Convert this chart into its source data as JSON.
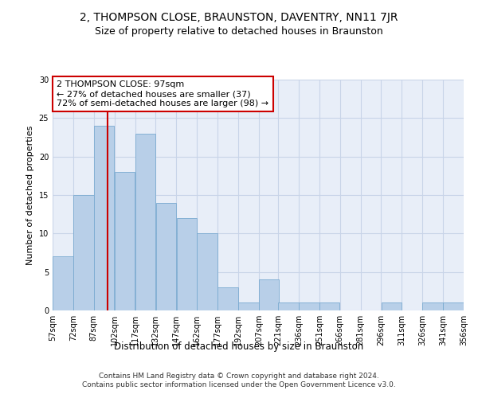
{
  "title": "2, THOMPSON CLOSE, BRAUNSTON, DAVENTRY, NN11 7JR",
  "subtitle": "Size of property relative to detached houses in Braunston",
  "xlabel": "Distribution of detached houses by size in Braunston",
  "ylabel": "Number of detached properties",
  "bar_color": "#b8cfe8",
  "bar_edge_color": "#7aaad0",
  "vline_x": 97,
  "vline_color": "#cc0000",
  "annotation_text": "2 THOMPSON CLOSE: 97sqm\n← 27% of detached houses are smaller (37)\n72% of semi-detached houses are larger (98) →",
  "annotation_box_color": "#ffffff",
  "annotation_border_color": "#cc0000",
  "bins_left_edges": [
    57,
    72,
    87,
    102,
    117,
    132,
    147,
    162,
    177,
    192,
    207,
    221,
    236,
    251,
    266,
    281,
    296,
    311,
    326,
    341
  ],
  "bin_width": 15,
  "bar_heights": [
    7,
    15,
    24,
    18,
    23,
    14,
    12,
    10,
    3,
    1,
    4,
    1,
    1,
    1,
    0,
    0,
    1,
    0,
    1,
    1
  ],
  "ylim": [
    0,
    30
  ],
  "xlim": [
    57,
    356
  ],
  "xtick_labels": [
    "57sqm",
    "72sqm",
    "87sqm",
    "102sqm",
    "117sqm",
    "132sqm",
    "147sqm",
    "162sqm",
    "177sqm",
    "192sqm",
    "207sqm",
    "221sqm",
    "236sqm",
    "251sqm",
    "266sqm",
    "281sqm",
    "296sqm",
    "311sqm",
    "326sqm",
    "341sqm",
    "356sqm"
  ],
  "grid_color": "#c8d4e8",
  "bg_color": "#e8eef8",
  "footnote": "Contains HM Land Registry data © Crown copyright and database right 2024.\nContains public sector information licensed under the Open Government Licence v3.0.",
  "title_fontsize": 10,
  "subtitle_fontsize": 9,
  "xlabel_fontsize": 8.5,
  "ylabel_fontsize": 8,
  "tick_fontsize": 7,
  "annotation_fontsize": 8,
  "footnote_fontsize": 6.5
}
